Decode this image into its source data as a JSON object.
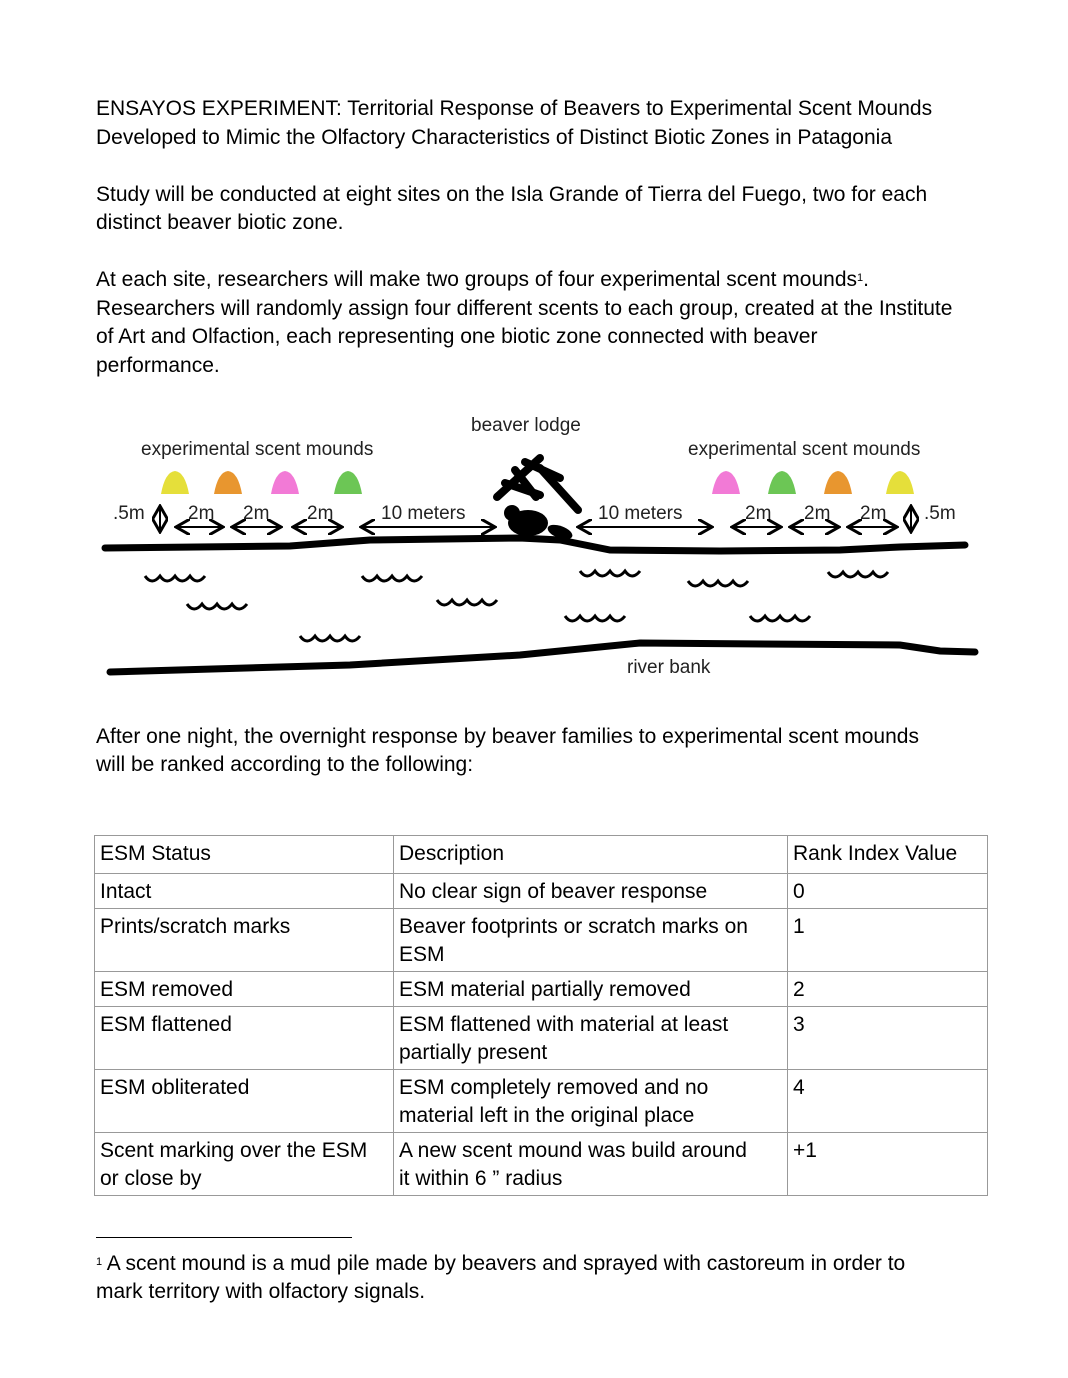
{
  "title": [
    "ENSAYOS EXPERIMENT: Territorial Response of Beavers to Experimental Scent Mounds",
    "Developed to Mimic the Olfactory Characteristics of Distinct Biotic Zones in Patagonia"
  ],
  "para1": [
    "Study will be conducted at eight sites on the Isla Grande of Tierra del Fuego, two for each",
    "distinct beaver biotic zone."
  ],
  "para2": {
    "line1": "At each site, researchers will make two groups of four experimental scent mounds",
    "sup": "1",
    "line1_end": ".",
    "lines": [
      "Researchers will randomly assign four different scents to each group, created at the Institute",
      "of Art and Olfaction, each representing one biotic zone connected with beaver",
      "performance."
    ]
  },
  "diagram": {
    "mounds_label_left": "experimental scent mounds",
    "mounds_label_right": "experimental scent mounds",
    "lodge_label": "beaver lodge",
    "river_bank_label": "river bank",
    "half_m": ".5m",
    "two_m": "2m",
    "ten_m": "10 meters",
    "mound_colors_left": [
      "#e5df3a",
      "#e8962f",
      "#f27ad6",
      "#6cc655"
    ],
    "mound_colors_right": [
      "#f27ad6",
      "#6cc655",
      "#e8962f",
      "#e5df3a"
    ]
  },
  "para3": [
    "After one night, the overnight response by beaver families to experimental scent mounds",
    "will be ranked according to the following:"
  ],
  "table": {
    "headers": [
      "ESM Status",
      "Description",
      "Rank Index Value"
    ],
    "rows": [
      {
        "status": [
          "Intact"
        ],
        "desc": [
          "No clear sign of beaver response"
        ],
        "rank": "0"
      },
      {
        "status": [
          "Prints/scratch marks"
        ],
        "desc": [
          "Beaver footprints or scratch marks on",
          "ESM"
        ],
        "rank": "1"
      },
      {
        "status": [
          "ESM removed"
        ],
        "desc": [
          "ESM material partially removed"
        ],
        "rank": "2"
      },
      {
        "status": [
          "ESM flattened"
        ],
        "desc": [
          "ESM flattened with material at least",
          "partially present"
        ],
        "rank": "3"
      },
      {
        "status": [
          "ESM obliterated"
        ],
        "desc": [
          "ESM completely removed and no",
          "material left in the original place"
        ],
        "rank": "4"
      },
      {
        "status": [
          "Scent marking over the ESM",
          "or close by"
        ],
        "desc": [
          "A new scent mound was build around",
          "it within 6 ” radius"
        ],
        "rank": "+1"
      }
    ]
  },
  "footnote": {
    "mark": "1",
    "lines": [
      " A scent mound is a mud pile made by beavers and sprayed with castoreum in order to",
      "mark territory with olfactory signals."
    ]
  }
}
